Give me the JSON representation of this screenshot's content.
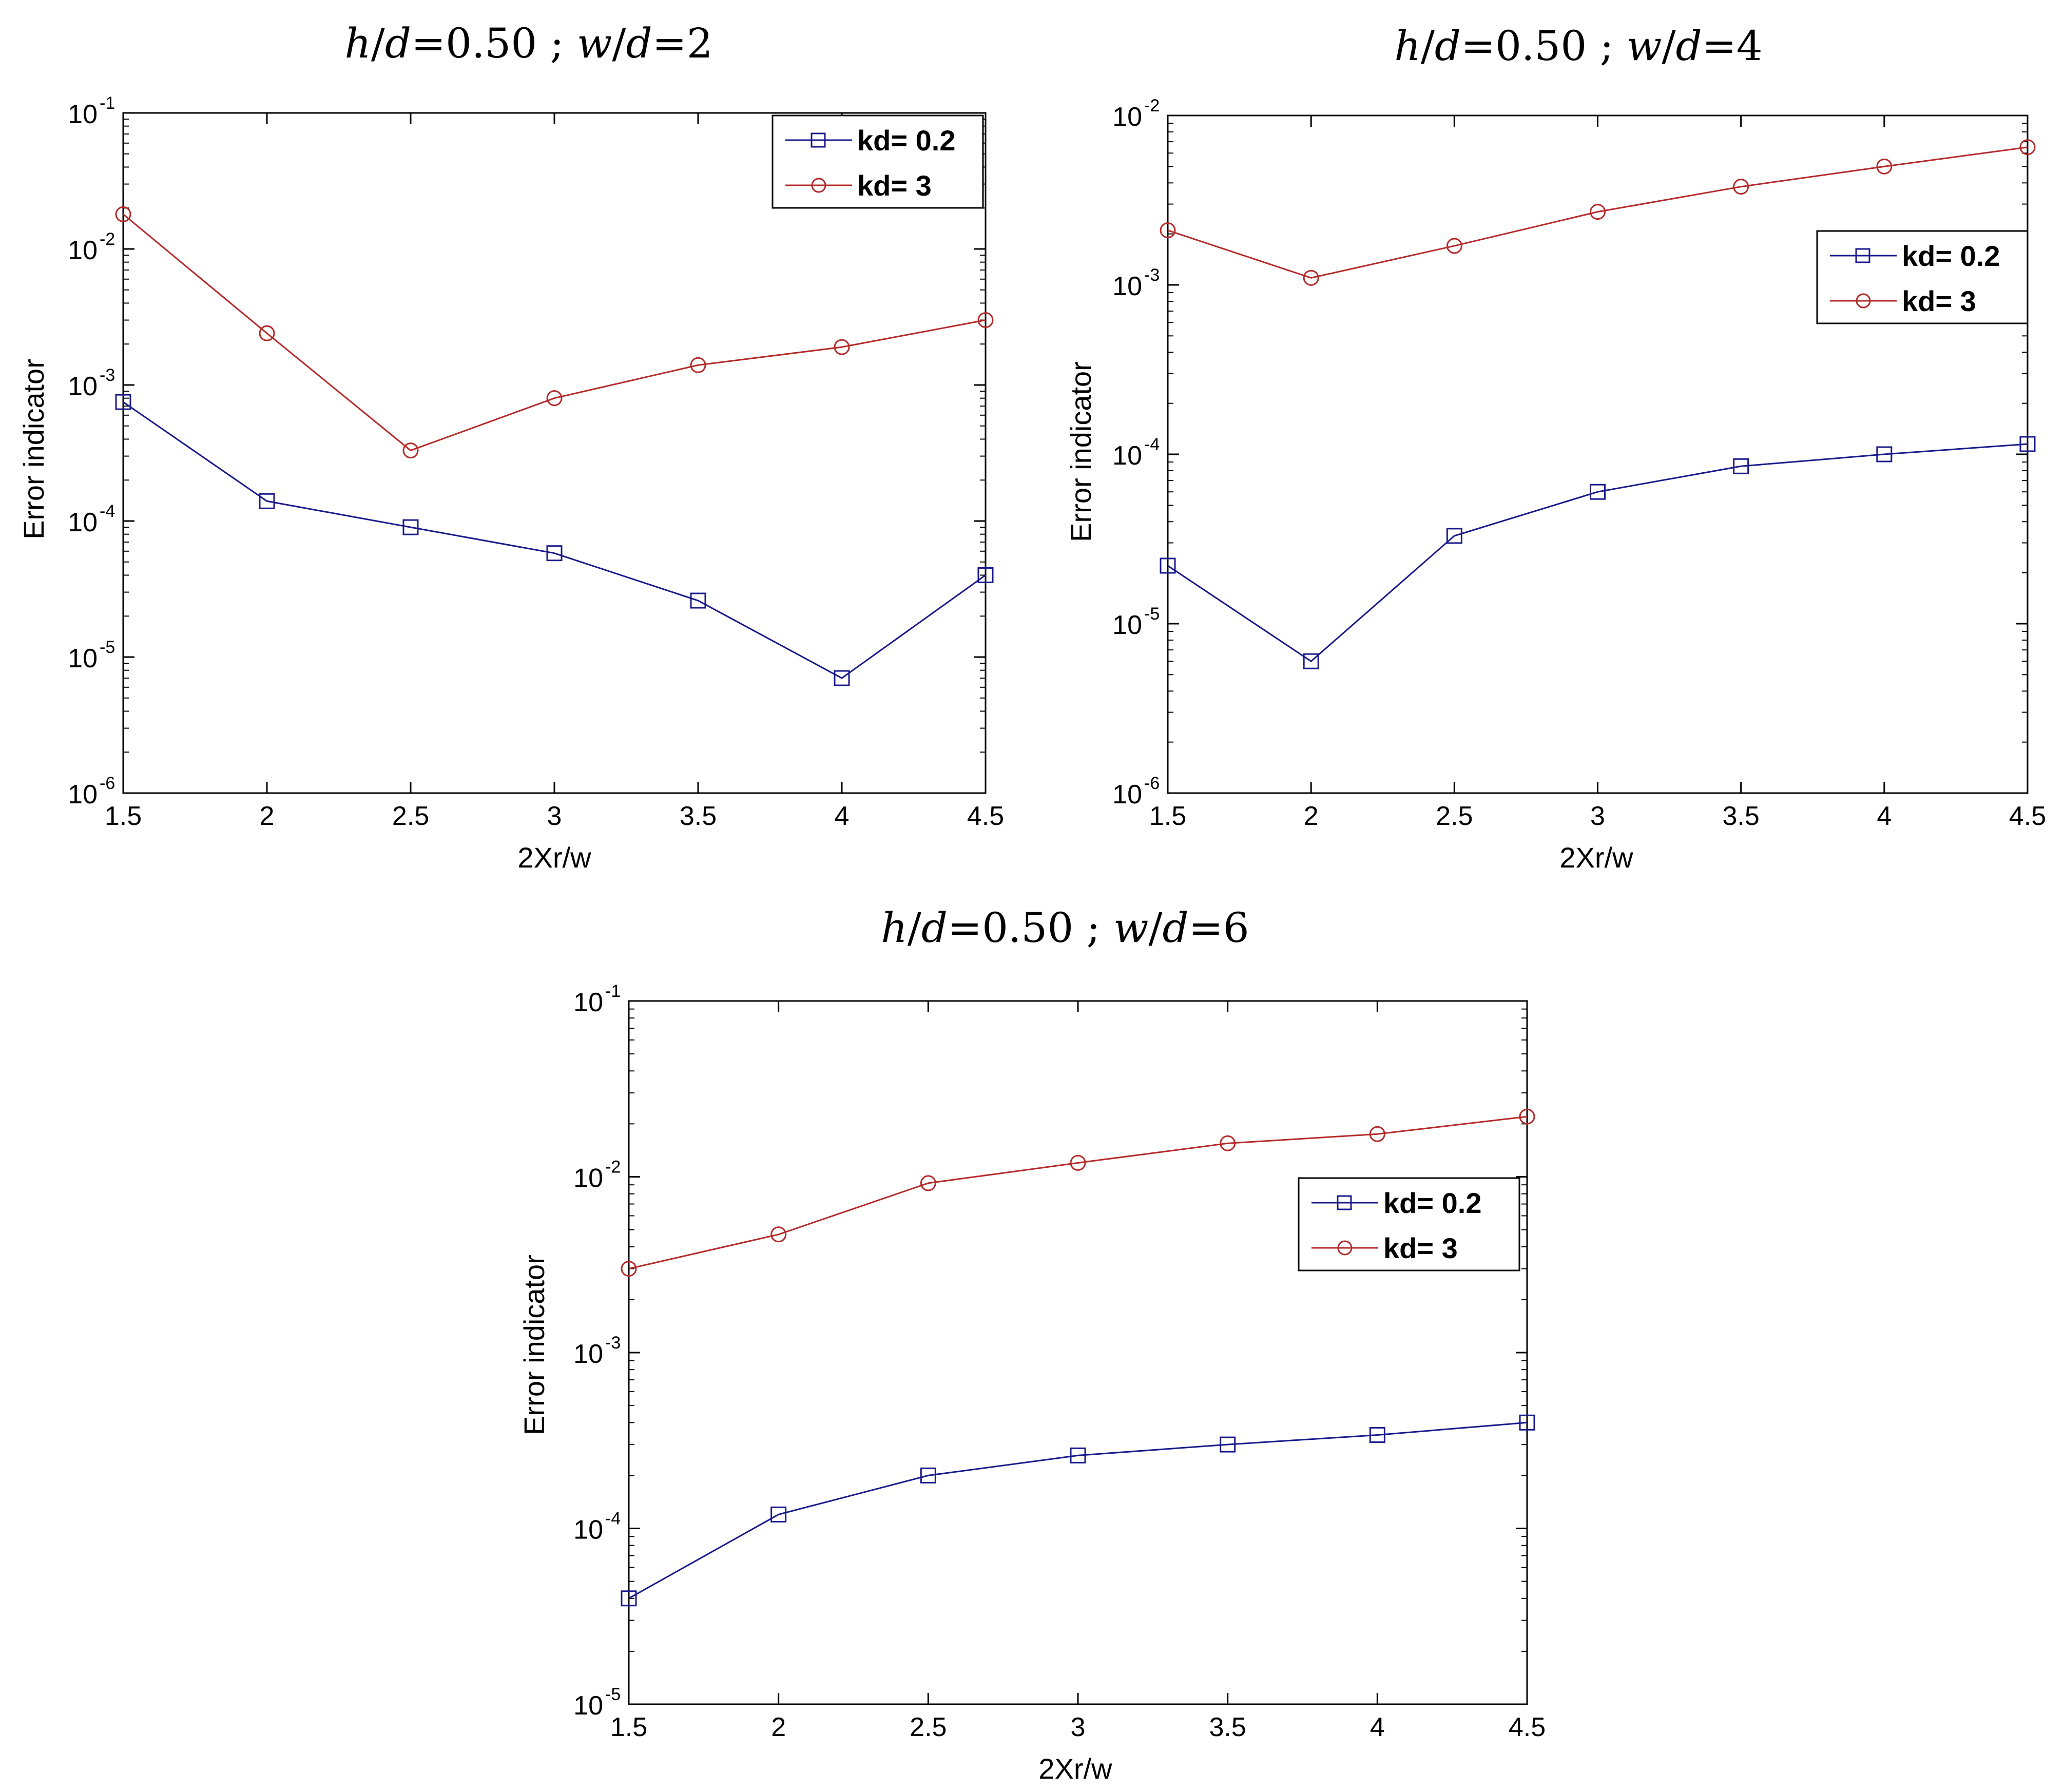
{
  "chart_data": [
    {
      "type": "line",
      "title": "h/d=0.50 ; w/d=2",
      "title_parts": {
        "h": "h",
        "d1": "d",
        "eq1": "=0.50 ; ",
        "w": "w",
        "d2": "d",
        "eq2": "=2"
      },
      "xlabel": "2Xr/w",
      "ylabel": "Error indicator",
      "yscale": "log",
      "xlim": [
        1.5,
        4.5
      ],
      "ylim_exp": [
        -6,
        -1
      ],
      "x_ticks": [
        "1.5",
        "2",
        "2.5",
        "3",
        "3.5",
        "4",
        "4.5"
      ],
      "legend_position": "top-right",
      "x": [
        1.5,
        2,
        2.5,
        3,
        3.5,
        4,
        4.5
      ],
      "series": [
        {
          "name": "kd= 0.2",
          "color": "#1a1a8c",
          "marker": "square",
          "values": [
            0.00075,
            0.00014,
            9e-05,
            5.8e-05,
            2.6e-05,
            7e-06,
            4e-05
          ]
        },
        {
          "name": "kd= 3",
          "color": "#b52a2a",
          "marker": "circle",
          "values": [
            0.018,
            0.0024,
            0.00033,
            0.0008,
            0.0014,
            0.0019,
            0.003
          ]
        }
      ]
    },
    {
      "type": "line",
      "title": "h/d=0.50 ; w/d=4",
      "title_parts": {
        "h": "h",
        "d1": "d",
        "eq1": "=0.50 ; ",
        "w": "w",
        "d2": "d",
        "eq2": "=4"
      },
      "xlabel": "2Xr/w",
      "ylabel": "Error indicator",
      "yscale": "log",
      "xlim": [
        1.5,
        4.5
      ],
      "ylim_exp": [
        -6,
        -2
      ],
      "x_ticks": [
        "1.5",
        "2",
        "2.5",
        "3",
        "3.5",
        "4",
        "4.5"
      ],
      "legend_position": "upper-right",
      "x": [
        1.5,
        2,
        2.5,
        3,
        3.5,
        4,
        4.5
      ],
      "series": [
        {
          "name": "kd= 0.2",
          "color": "#1a1a8c",
          "marker": "square",
          "values": [
            2.2e-05,
            6e-06,
            3.3e-05,
            6e-05,
            8.5e-05,
            0.0001,
            0.000115
          ]
        },
        {
          "name": "kd= 3",
          "color": "#b52a2a",
          "marker": "circle",
          "values": [
            0.0021,
            0.0011,
            0.0017,
            0.0027,
            0.0038,
            0.005,
            0.0065
          ]
        }
      ]
    },
    {
      "type": "line",
      "title": "h/d=0.50 ; w/d=6",
      "title_parts": {
        "h": "h",
        "d1": "d",
        "eq1": "=0.50 ; ",
        "w": "w",
        "d2": "d",
        "eq2": "=6"
      },
      "xlabel": "2Xr/w",
      "ylabel": "Error indicator",
      "yscale": "log",
      "xlim": [
        1.5,
        4.5
      ],
      "ylim_exp": [
        -5,
        -1
      ],
      "x_ticks": [
        "1.5",
        "2",
        "2.5",
        "3",
        "3.5",
        "4",
        "4.5"
      ],
      "legend_position": "right",
      "x": [
        1.5,
        2,
        2.5,
        3,
        3.5,
        4,
        4.5
      ],
      "series": [
        {
          "name": "kd= 0.2",
          "color": "#1a1a8c",
          "marker": "square",
          "values": [
            4e-05,
            0.00012,
            0.0002,
            0.00026,
            0.0003,
            0.00034,
            0.0004
          ]
        },
        {
          "name": "kd= 3",
          "color": "#b52a2a",
          "marker": "circle",
          "values": [
            0.003,
            0.0047,
            0.0092,
            0.012,
            0.0155,
            0.0175,
            0.022
          ]
        }
      ]
    }
  ]
}
